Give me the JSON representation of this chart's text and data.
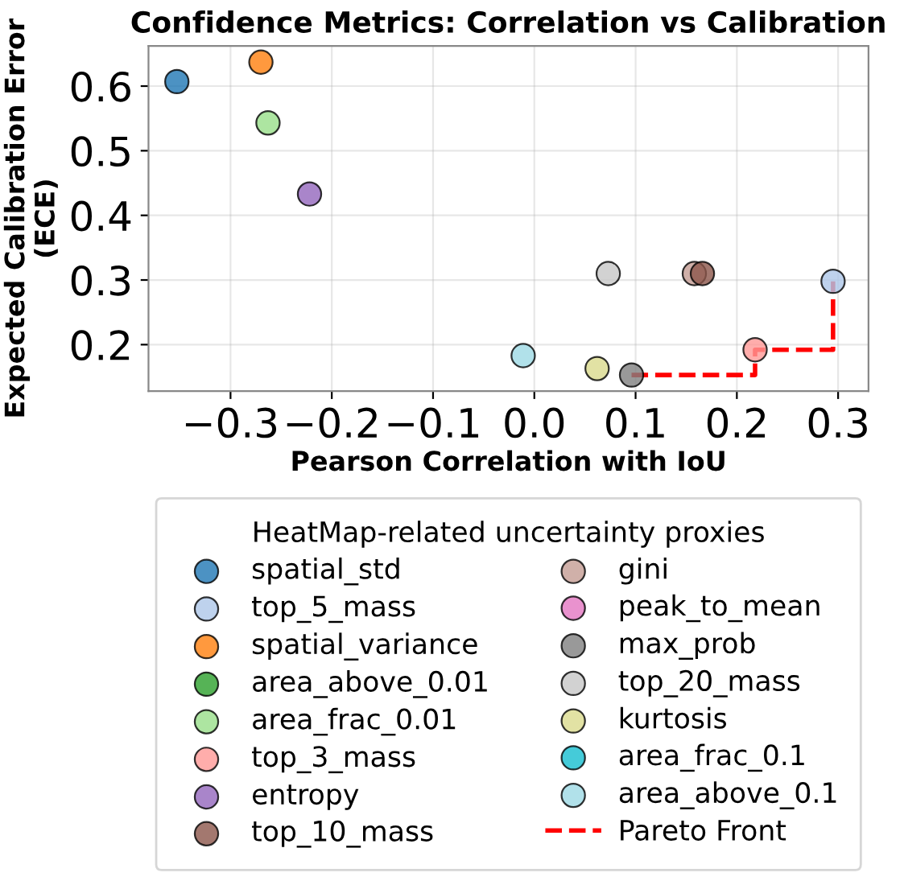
{
  "chart_data": {
    "type": "scatter",
    "title": "Confidence Metrics: Correlation vs Calibration",
    "xlabel": "Pearson Correlation with IoU",
    "ylabel": "Expected Calibration Error\n(ECE)",
    "legend_title": "HeatMap-related uncertainty proxies",
    "xlim": [
      -0.381,
      0.33
    ],
    "ylim": [
      0.128,
      0.662
    ],
    "xticks": [
      {
        "value": -0.3,
        "label": "−0.3"
      },
      {
        "value": -0.2,
        "label": "−0.2"
      },
      {
        "value": -0.1,
        "label": "−0.1"
      },
      {
        "value": 0.0,
        "label": "0.0"
      },
      0.1,
      0.2,
      0.3
    ],
    "yticks": [
      0.2,
      0.3,
      0.4,
      0.5,
      0.6
    ],
    "grid": true,
    "legend": "bottom",
    "marker": "circle",
    "series": [
      {
        "name": "spatial_std",
        "color": "#1f77b4",
        "x": [
          -0.353
        ],
        "values": [
          0.607
        ]
      },
      {
        "name": "top_5_mass",
        "color": "#aec7e8",
        "x": [
          0.295
        ],
        "values": [
          0.298
        ]
      },
      {
        "name": "spatial_variance",
        "color": "#ff7f0e",
        "x": [
          -0.27
        ],
        "values": [
          0.637
        ]
      },
      {
        "name": "area_above_0.01",
        "color": "#2ca02c",
        "x": [
          null
        ],
        "values": [
          null
        ]
      },
      {
        "name": "area_frac_0.01",
        "color": "#98df8a",
        "x": [
          -0.263
        ],
        "values": [
          0.543
        ]
      },
      {
        "name": "top_3_mass",
        "color": "#ff9896",
        "x": [
          0.218
        ],
        "values": [
          0.192
        ]
      },
      {
        "name": "entropy",
        "color": "#9467bd",
        "x": [
          -0.222
        ],
        "values": [
          0.433
        ]
      },
      {
        "name": "top_10_mass",
        "color": "#8c564b",
        "x": [
          0.166
        ],
        "values": [
          0.31
        ]
      },
      {
        "name": "gini",
        "color": "#c49c94",
        "x": [
          0.158
        ],
        "values": [
          0.31
        ]
      },
      {
        "name": "peak_to_mean",
        "color": "#e377c2",
        "x": [
          null
        ],
        "values": [
          null
        ]
      },
      {
        "name": "max_prob",
        "color": "#7f7f7f",
        "x": [
          0.096
        ],
        "values": [
          0.153
        ]
      },
      {
        "name": "top_20_mass",
        "color": "#c7c7c7",
        "x": [
          0.073
        ],
        "values": [
          0.31
        ]
      },
      {
        "name": "kurtosis",
        "color": "#dbdb8d",
        "x": [
          0.062
        ],
        "values": [
          0.163
        ]
      },
      {
        "name": "area_frac_0.1",
        "color": "#17becf",
        "x": [
          null
        ],
        "values": [
          null
        ]
      },
      {
        "name": "area_above_0.1",
        "color": "#9edae5",
        "x": [
          -0.011
        ],
        "values": [
          0.183
        ]
      },
      {
        "name": "Pareto Front",
        "type": "step",
        "color": "#ff0000",
        "line_style": "dashed",
        "marker": "none",
        "x": [
          0.096,
          0.218,
          0.295
        ],
        "values": [
          0.153,
          0.192,
          0.298
        ]
      }
    ]
  }
}
